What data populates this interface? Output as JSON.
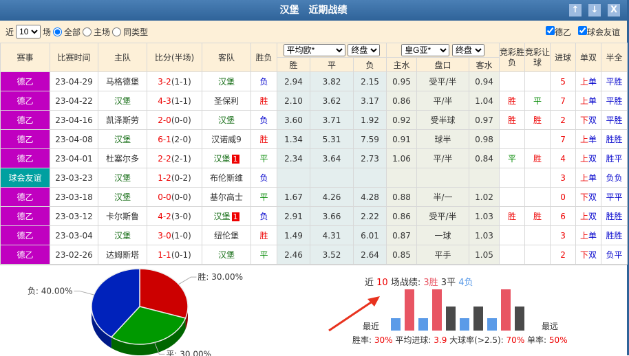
{
  "title": "汉堡　近期战绩",
  "buttons": {
    "up": "↑",
    "down": "↓",
    "close": "X"
  },
  "filter": {
    "near": "近",
    "count": "10",
    "unit": "场",
    "all": "全部",
    "home": "主场",
    "same": "同类型",
    "leagues": [
      "德乙",
      "球会友谊"
    ]
  },
  "headers": {
    "league": "赛事",
    "time": "比赛时间",
    "home": "主队",
    "score": "比分(半场)",
    "away": "客队",
    "result": "胜负",
    "euro_company": "平均欧*",
    "euro_type": "终盘",
    "asia_company": "皇G亚*",
    "asia_type": "终盘",
    "win": "胜",
    "draw": "平",
    "lose": "负",
    "hw": "主水",
    "line": "盘口",
    "aw": "客水",
    "jc_res": "竞彩胜负",
    "jc_hcp": "竞彩让球",
    "goals": "进球",
    "oe": "单双",
    "hf": "半全"
  },
  "rows": [
    [
      "德乙",
      "23-04-29",
      "马格德堡",
      "3-2",
      "(1-1)",
      "汉堡",
      "",
      "负",
      "2.94",
      "3.82",
      "2.15",
      "0.95",
      "受平/半",
      "0.94",
      "",
      "",
      "5",
      "上",
      "单",
      "平胜"
    ],
    [
      "德乙",
      "23-04-22",
      "汉堡",
      "4-3",
      "(1-1)",
      "圣保利",
      "",
      "胜",
      "2.10",
      "3.62",
      "3.17",
      "0.86",
      "平/半",
      "1.04",
      "胜",
      "平",
      "7",
      "上",
      "单",
      "平胜"
    ],
    [
      "德乙",
      "23-04-16",
      "凯泽斯劳",
      "2-0",
      "(0-0)",
      "汉堡",
      "",
      "负",
      "3.60",
      "3.71",
      "1.92",
      "0.92",
      "受半球",
      "0.97",
      "胜",
      "胜",
      "2",
      "下",
      "双",
      "平胜"
    ],
    [
      "德乙",
      "23-04-08",
      "汉堡",
      "6-1",
      "(2-0)",
      "汉诺威9",
      "",
      "胜",
      "1.34",
      "5.31",
      "7.59",
      "0.91",
      "球半",
      "0.98",
      "",
      "",
      "7",
      "上",
      "单",
      "胜胜"
    ],
    [
      "德乙",
      "23-04-01",
      "杜塞尔多",
      "2-2",
      "(2-1)",
      "汉堡",
      "1",
      "平",
      "2.34",
      "3.64",
      "2.73",
      "1.06",
      "平/半",
      "0.84",
      "平",
      "胜",
      "4",
      "上",
      "双",
      "胜平"
    ],
    [
      "球会友谊",
      "23-03-23",
      "汉堡",
      "1-2",
      "(0-2)",
      "布伦斯维",
      "",
      "负",
      "",
      "",
      "",
      "",
      "",
      "",
      "",
      "",
      "3",
      "上",
      "单",
      "负负"
    ],
    [
      "德乙",
      "23-03-18",
      "汉堡",
      "0-0",
      "(0-0)",
      "基尔高士",
      "",
      "平",
      "1.67",
      "4.26",
      "4.28",
      "0.88",
      "半/一",
      "1.02",
      "",
      "",
      "0",
      "下",
      "双",
      "平平"
    ],
    [
      "德乙",
      "23-03-12",
      "卡尔斯鲁",
      "4-2",
      "(3-0)",
      "汉堡",
      "1",
      "负",
      "2.91",
      "3.66",
      "2.22",
      "0.86",
      "受平/半",
      "1.03",
      "胜",
      "胜",
      "6",
      "上",
      "双",
      "胜胜"
    ],
    [
      "德乙",
      "23-03-04",
      "汉堡",
      "3-0",
      "(1-0)",
      "纽伦堡",
      "",
      "胜",
      "1.49",
      "4.31",
      "6.01",
      "0.87",
      "一球",
      "1.03",
      "",
      "",
      "3",
      "上",
      "单",
      "胜胜"
    ],
    [
      "德乙",
      "23-02-26",
      "达姆斯塔",
      "1-1",
      "(0-1)",
      "汉堡",
      "",
      "平",
      "2.46",
      "3.52",
      "2.64",
      "0.85",
      "平手",
      "1.05",
      "",
      "",
      "2",
      "下",
      "双",
      "负平"
    ]
  ],
  "pie": {
    "slices": [
      {
        "label": "胜: 30.00%",
        "value": 30,
        "color": "#cc0000"
      },
      {
        "label": "平: 30.00%",
        "value": 30,
        "color": "#009900"
      },
      {
        "label": "负: 40.00%",
        "value": 40,
        "color": "#0022bb"
      }
    ]
  },
  "summary": {
    "p1": "近",
    "n": "10",
    "p2": "场战绩:",
    "w": "3胜",
    "d": "3平",
    "l": "4负",
    "recent": "最近",
    "far": "最远",
    "wr_l": "胜率:",
    "wr": "30%",
    "avg_l": "平均进球:",
    "avg": "3.9",
    "big_l": "大球率(>2.5):",
    "big": "70%",
    "odd_l": "单率:",
    "odd": "50%",
    "bars": [
      "负",
      "胜",
      "负",
      "胜",
      "平",
      "负",
      "平",
      "负",
      "胜",
      "平"
    ],
    "colors": {
      "胜": "#e85563",
      "平": "#4a4a4a",
      "负": "#5b9be8"
    }
  }
}
